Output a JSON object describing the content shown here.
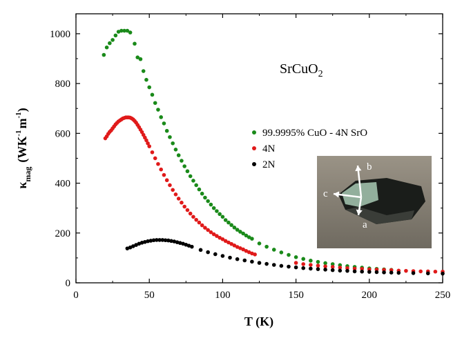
{
  "chart_data": {
    "type": "scatter",
    "xlabel": "T (K)",
    "ylabel": {
      "main": "κ",
      "sub": "mag",
      "unit_open": "(WK",
      "sup1": "-1",
      "unit_mid": "m",
      "sup2": "-1",
      "unit_close": ")"
    },
    "xlim": [
      0,
      250
    ],
    "ylim": [
      0,
      1080
    ],
    "x_ticks": [
      0,
      50,
      100,
      150,
      200,
      250
    ],
    "y_ticks": [
      0,
      200,
      400,
      600,
      800,
      1000
    ],
    "grid": false,
    "legend_position": "right-middle",
    "annotation": {
      "main": "SrCuO",
      "sub": "2"
    },
    "inset_photo": {
      "axis_labels": [
        "b",
        "c",
        "a"
      ]
    },
    "series": [
      {
        "name": "99.9995% CuO - 4N SrO",
        "color": "#1a8a1a",
        "points": [
          [
            19,
            915
          ],
          [
            21,
            945
          ],
          [
            23,
            962
          ],
          [
            25,
            975
          ],
          [
            27,
            993
          ],
          [
            29,
            1008
          ],
          [
            31,
            1012
          ],
          [
            33,
            1012
          ],
          [
            35,
            1012
          ],
          [
            37,
            1005
          ],
          [
            40,
            960
          ],
          [
            42,
            905
          ],
          [
            44,
            898
          ],
          [
            46,
            850
          ],
          [
            48,
            815
          ],
          [
            50,
            785
          ],
          [
            52,
            755
          ],
          [
            54,
            722
          ],
          [
            56,
            695
          ],
          [
            58,
            665
          ],
          [
            60,
            640
          ],
          [
            62,
            610
          ],
          [
            64,
            585
          ],
          [
            66,
            560
          ],
          [
            68,
            535
          ],
          [
            70,
            512
          ],
          [
            72,
            490
          ],
          [
            74,
            468
          ],
          [
            76,
            448
          ],
          [
            78,
            428
          ],
          [
            80,
            410
          ],
          [
            82,
            392
          ],
          [
            84,
            375
          ],
          [
            86,
            358
          ],
          [
            88,
            342
          ],
          [
            90,
            328
          ],
          [
            92,
            314
          ],
          [
            94,
            300
          ],
          [
            96,
            288
          ],
          [
            98,
            276
          ],
          [
            100,
            265
          ],
          [
            102,
            252
          ],
          [
            104,
            242
          ],
          [
            106,
            232
          ],
          [
            108,
            222
          ],
          [
            110,
            213
          ],
          [
            112,
            205
          ],
          [
            114,
            198
          ],
          [
            116,
            190
          ],
          [
            118,
            183
          ],
          [
            120,
            177
          ],
          [
            125,
            158
          ],
          [
            130,
            145
          ],
          [
            135,
            133
          ],
          [
            140,
            122
          ],
          [
            145,
            112
          ],
          [
            150,
            103
          ],
          [
            155,
            96
          ],
          [
            160,
            89
          ],
          [
            165,
            84
          ],
          [
            170,
            79
          ],
          [
            175,
            75
          ],
          [
            180,
            71
          ],
          [
            185,
            67
          ],
          [
            190,
            64
          ],
          [
            195,
            61
          ],
          [
            200,
            58
          ],
          [
            205,
            56
          ],
          [
            210,
            54
          ],
          [
            215,
            52
          ]
        ]
      },
      {
        "name": "4N",
        "color": "#e01a1a",
        "points": [
          [
            20,
            580
          ],
          [
            21,
            588
          ],
          [
            22,
            598
          ],
          [
            23,
            606
          ],
          [
            24,
            612
          ],
          [
            25,
            620
          ],
          [
            26,
            628
          ],
          [
            27,
            636
          ],
          [
            28,
            642
          ],
          [
            29,
            648
          ],
          [
            30,
            652
          ],
          [
            31,
            656
          ],
          [
            32,
            660
          ],
          [
            33,
            662
          ],
          [
            34,
            664
          ],
          [
            35,
            664
          ],
          [
            36,
            664
          ],
          [
            37,
            663
          ],
          [
            38,
            660
          ],
          [
            39,
            656
          ],
          [
            40,
            650
          ],
          [
            41,
            643
          ],
          [
            42,
            634
          ],
          [
            43,
            625
          ],
          [
            44,
            615
          ],
          [
            45,
            605
          ],
          [
            46,
            594
          ],
          [
            47,
            583
          ],
          [
            48,
            572
          ],
          [
            49,
            560
          ],
          [
            50,
            548
          ],
          [
            52,
            524
          ],
          [
            54,
            500
          ],
          [
            56,
            477
          ],
          [
            58,
            455
          ],
          [
            60,
            433
          ],
          [
            62,
            412
          ],
          [
            64,
            392
          ],
          [
            66,
            373
          ],
          [
            68,
            355
          ],
          [
            70,
            338
          ],
          [
            72,
            322
          ],
          [
            74,
            306
          ],
          [
            76,
            292
          ],
          [
            78,
            278
          ],
          [
            80,
            265
          ],
          [
            82,
            253
          ],
          [
            84,
            242
          ],
          [
            86,
            231
          ],
          [
            88,
            221
          ],
          [
            90,
            212
          ],
          [
            92,
            203
          ],
          [
            94,
            195
          ],
          [
            96,
            188
          ],
          [
            98,
            181
          ],
          [
            100,
            175
          ],
          [
            102,
            168
          ],
          [
            104,
            162
          ],
          [
            106,
            156
          ],
          [
            108,
            150
          ],
          [
            110,
            144
          ],
          [
            112,
            139
          ],
          [
            114,
            134
          ],
          [
            116,
            128
          ],
          [
            118,
            123
          ],
          [
            120,
            118
          ],
          [
            122,
            114
          ],
          [
            150,
            80
          ],
          [
            155,
            75
          ],
          [
            160,
            72
          ],
          [
            165,
            69
          ],
          [
            170,
            66
          ],
          [
            175,
            64
          ],
          [
            180,
            61
          ],
          [
            185,
            59
          ],
          [
            190,
            57
          ],
          [
            195,
            56
          ],
          [
            200,
            54
          ],
          [
            205,
            53
          ],
          [
            210,
            52
          ],
          [
            215,
            51
          ],
          [
            220,
            49
          ],
          [
            225,
            48
          ],
          [
            230,
            47
          ],
          [
            235,
            46
          ],
          [
            240,
            46
          ],
          [
            245,
            45
          ],
          [
            250,
            45
          ]
        ]
      },
      {
        "name": "2N",
        "color": "#000000",
        "points": [
          [
            35,
            138
          ],
          [
            37,
            142
          ],
          [
            39,
            147
          ],
          [
            41,
            152
          ],
          [
            43,
            157
          ],
          [
            45,
            161
          ],
          [
            47,
            164
          ],
          [
            49,
            167
          ],
          [
            51,
            169
          ],
          [
            53,
            171
          ],
          [
            55,
            172
          ],
          [
            57,
            172
          ],
          [
            59,
            172
          ],
          [
            61,
            171
          ],
          [
            63,
            170
          ],
          [
            65,
            168
          ],
          [
            67,
            166
          ],
          [
            69,
            163
          ],
          [
            71,
            160
          ],
          [
            73,
            157
          ],
          [
            75,
            153
          ],
          [
            77,
            149
          ],
          [
            79,
            145
          ],
          [
            85,
            132
          ],
          [
            90,
            123
          ],
          [
            95,
            115
          ],
          [
            100,
            108
          ],
          [
            105,
            101
          ],
          [
            110,
            95
          ],
          [
            115,
            90
          ],
          [
            120,
            85
          ],
          [
            125,
            80
          ],
          [
            130,
            76
          ],
          [
            135,
            72
          ],
          [
            140,
            68
          ],
          [
            145,
            65
          ],
          [
            150,
            62
          ],
          [
            155,
            59
          ],
          [
            160,
            57
          ],
          [
            165,
            55
          ],
          [
            170,
            53
          ],
          [
            175,
            51
          ],
          [
            180,
            49
          ],
          [
            185,
            48
          ],
          [
            190,
            46
          ],
          [
            195,
            45
          ],
          [
            200,
            44
          ],
          [
            205,
            43
          ],
          [
            210,
            42
          ],
          [
            215,
            41
          ],
          [
            220,
            40
          ],
          [
            230,
            39
          ],
          [
            240,
            38
          ],
          [
            250,
            37
          ]
        ]
      }
    ]
  }
}
